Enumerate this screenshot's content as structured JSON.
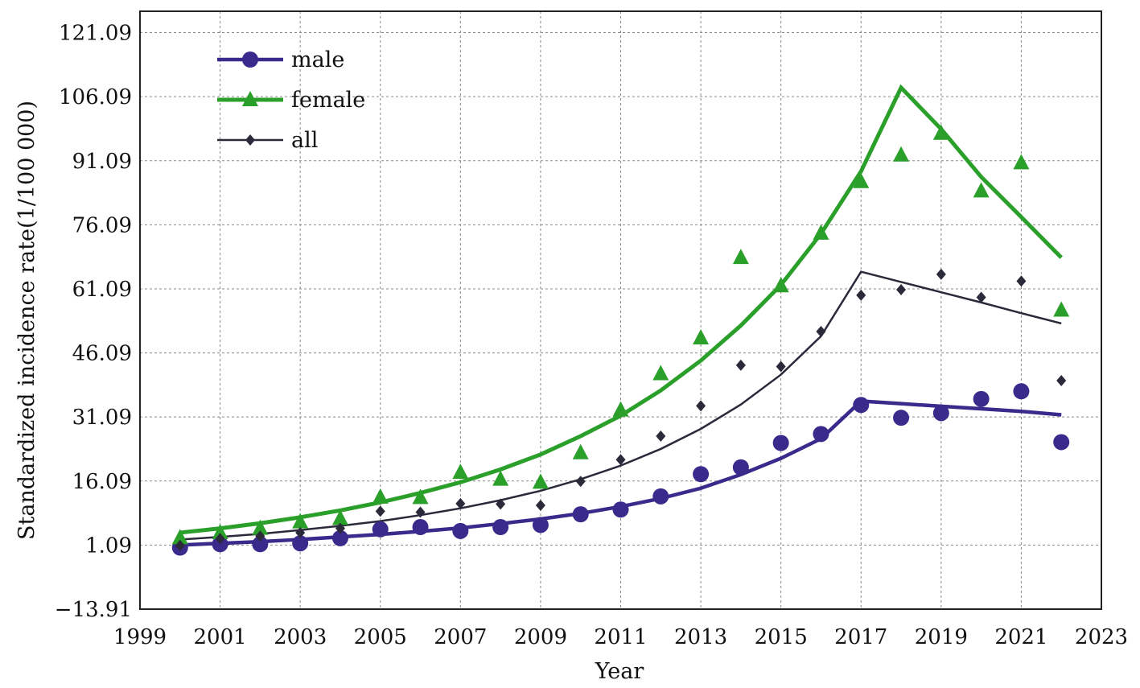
{
  "chart_data": {
    "type": "line",
    "xlabel": "Year",
    "ylabel": "Standardized incidence rate(1/100 000)",
    "xlim": [
      1999,
      2023
    ],
    "ylim": [
      -13.91,
      126.09
    ],
    "x_ticks": [
      1999,
      2001,
      2003,
      2005,
      2007,
      2009,
      2011,
      2013,
      2015,
      2017,
      2019,
      2021,
      2023
    ],
    "x_tick_labels": [
      "1999",
      "2001",
      "2003",
      "2005",
      "2007",
      "2009",
      "2011",
      "2013",
      "2015",
      "2017",
      "2019",
      "2021",
      "2023"
    ],
    "y_ticks": [
      -13.91,
      1.09,
      16.09,
      31.09,
      46.09,
      61.09,
      76.09,
      91.09,
      106.09,
      121.09
    ],
    "y_tick_labels": [
      "−13.91",
      "1.09",
      "16.09",
      "31.09",
      "46.09",
      "61.09",
      "76.09",
      "91.09",
      "106.09",
      "121.09"
    ],
    "grid": true,
    "legend_position": "top-left",
    "series": [
      {
        "name": "male",
        "color": "#3a2a8c",
        "marker": "circle",
        "observed_x": [
          2000,
          2001,
          2002,
          2003,
          2004,
          2005,
          2006,
          2007,
          2008,
          2009,
          2010,
          2011,
          2012,
          2013,
          2014,
          2015,
          2016,
          2017,
          2018,
          2019,
          2020,
          2021,
          2022
        ],
        "observed_y": [
          0.5,
          1.3,
          1.3,
          1.5,
          2.7,
          4.8,
          5.3,
          4.4,
          5.3,
          5.8,
          8.3,
          9.4,
          12.5,
          17.7,
          19.3,
          25.0,
          27.1,
          33.9,
          30.9,
          32.0,
          35.3,
          37.1,
          25.2
        ],
        "fitted_x": [
          2000,
          2001,
          2002,
          2003,
          2004,
          2005,
          2006,
          2007,
          2008,
          2009,
          2010,
          2011,
          2012,
          2013,
          2014,
          2015,
          2016,
          2017,
          2018,
          2019,
          2020,
          2021,
          2022
        ],
        "fitted_y": [
          1.1,
          1.5,
          1.9,
          2.4,
          3.0,
          3.6,
          4.3,
          5.1,
          6.1,
          7.2,
          8.5,
          10.1,
          12.0,
          14.4,
          17.6,
          21.4,
          26.0,
          34.8,
          34.2,
          33.6,
          33.0,
          32.4,
          31.6
        ]
      },
      {
        "name": "female",
        "color": "#2aa02a",
        "marker": "triangle",
        "observed_x": [
          2000,
          2001,
          2002,
          2003,
          2004,
          2005,
          2006,
          2007,
          2008,
          2009,
          2010,
          2011,
          2012,
          2013,
          2014,
          2015,
          2016,
          2017,
          2018,
          2019,
          2020,
          2021,
          2022
        ],
        "observed_y": [
          2.8,
          4.0,
          5.0,
          6.5,
          7.3,
          12.3,
          12.2,
          18.1,
          16.5,
          15.8,
          22.7,
          32.7,
          41.2,
          49.6,
          68.4,
          61.8,
          74.1,
          86.2,
          92.4,
          97.5,
          84.0,
          90.6,
          56.1
        ],
        "fitted_x": [
          2000,
          2001,
          2002,
          2003,
          2004,
          2005,
          2006,
          2007,
          2008,
          2009,
          2010,
          2011,
          2012,
          2013,
          2014,
          2015,
          2016,
          2017,
          2018,
          2019,
          2020,
          2021,
          2022
        ],
        "fitted_y": [
          4.0,
          5.0,
          6.2,
          7.6,
          9.2,
          11.1,
          13.3,
          15.8,
          18.8,
          22.3,
          26.6,
          31.4,
          37.3,
          44.3,
          52.5,
          62.0,
          74.0,
          88.6,
          108.2,
          98.5,
          87.3,
          77.9,
          68.4
        ]
      },
      {
        "name": "all",
        "color": "#2a2a3a",
        "marker": "diamond",
        "observed_x": [
          2000,
          2001,
          2002,
          2003,
          2004,
          2005,
          2006,
          2007,
          2008,
          2009,
          2010,
          2011,
          2012,
          2013,
          2014,
          2015,
          2016,
          2017,
          2018,
          2019,
          2020,
          2021,
          2022
        ],
        "observed_y": [
          1.0,
          2.6,
          3.2,
          4.0,
          5.0,
          9.0,
          8.8,
          10.8,
          10.7,
          10.4,
          16.0,
          21.1,
          26.6,
          33.7,
          43.2,
          42.9,
          51.1,
          59.6,
          60.9,
          64.5,
          59.1,
          62.9,
          39.6
        ],
        "fitted_x": [
          2000,
          2001,
          2002,
          2003,
          2004,
          2005,
          2006,
          2007,
          2008,
          2009,
          2010,
          2011,
          2012,
          2013,
          2014,
          2015,
          2016,
          2017,
          2018,
          2019,
          2020,
          2021,
          2022
        ],
        "fitted_y": [
          2.4,
          3.0,
          3.7,
          4.6,
          5.6,
          6.7,
          8.1,
          9.7,
          11.6,
          13.8,
          16.5,
          19.7,
          23.6,
          28.3,
          34.0,
          41.0,
          50.0,
          65.1,
          62.7,
          60.3,
          57.9,
          55.4,
          53.0
        ]
      }
    ]
  }
}
